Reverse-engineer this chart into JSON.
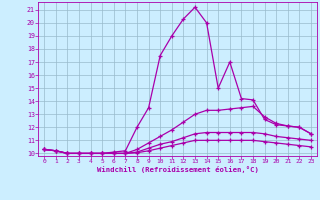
{
  "xlabel": "Windchill (Refroidissement éolien,°C)",
  "xlim": [
    -0.5,
    23.5
  ],
  "ylim": [
    9.8,
    21.6
  ],
  "xticks": [
    0,
    1,
    2,
    3,
    4,
    5,
    6,
    7,
    8,
    9,
    10,
    11,
    12,
    13,
    14,
    15,
    16,
    17,
    18,
    19,
    20,
    21,
    22,
    23
  ],
  "yticks": [
    10,
    11,
    12,
    13,
    14,
    15,
    16,
    17,
    18,
    19,
    20,
    21
  ],
  "bg_color": "#cceeff",
  "line_color": "#aa00aa",
  "grid_color": "#99bbcc",
  "series": [
    {
      "x": [
        0,
        1,
        2,
        3,
        4,
        5,
        6,
        7,
        8,
        9,
        10,
        11,
        12,
        13,
        14,
        15,
        16,
        17,
        18,
        19,
        20,
        21,
        22,
        23
      ],
      "y": [
        10.3,
        10.2,
        10.0,
        10.0,
        10.0,
        10.0,
        10.1,
        10.2,
        12.0,
        13.5,
        17.5,
        19.0,
        20.3,
        21.2,
        20.0,
        15.0,
        17.0,
        14.2,
        14.1,
        12.6,
        12.2,
        12.1,
        12.0,
        11.5
      ]
    },
    {
      "x": [
        0,
        1,
        2,
        3,
        4,
        5,
        6,
        7,
        8,
        9,
        10,
        11,
        12,
        13,
        14,
        15,
        16,
        17,
        18,
        19,
        20,
        21,
        22,
        23
      ],
      "y": [
        10.3,
        10.2,
        10.0,
        10.0,
        10.0,
        10.0,
        10.0,
        10.0,
        10.3,
        10.8,
        11.3,
        11.8,
        12.4,
        13.0,
        13.3,
        13.3,
        13.4,
        13.5,
        13.6,
        12.8,
        12.3,
        12.1,
        12.0,
        11.5
      ]
    },
    {
      "x": [
        0,
        1,
        2,
        3,
        4,
        5,
        6,
        7,
        8,
        9,
        10,
        11,
        12,
        13,
        14,
        15,
        16,
        17,
        18,
        19,
        20,
        21,
        22,
        23
      ],
      "y": [
        10.3,
        10.2,
        10.0,
        10.0,
        10.0,
        10.0,
        10.0,
        10.0,
        10.1,
        10.4,
        10.7,
        10.9,
        11.2,
        11.5,
        11.6,
        11.6,
        11.6,
        11.6,
        11.6,
        11.5,
        11.3,
        11.2,
        11.1,
        11.0
      ]
    },
    {
      "x": [
        0,
        1,
        2,
        3,
        4,
        5,
        6,
        7,
        8,
        9,
        10,
        11,
        12,
        13,
        14,
        15,
        16,
        17,
        18,
        19,
        20,
        21,
        22,
        23
      ],
      "y": [
        10.3,
        10.2,
        10.0,
        10.0,
        10.0,
        10.0,
        10.0,
        10.0,
        10.05,
        10.2,
        10.4,
        10.6,
        10.8,
        11.0,
        11.0,
        11.0,
        11.0,
        11.0,
        11.0,
        10.9,
        10.8,
        10.7,
        10.6,
        10.5
      ]
    }
  ]
}
